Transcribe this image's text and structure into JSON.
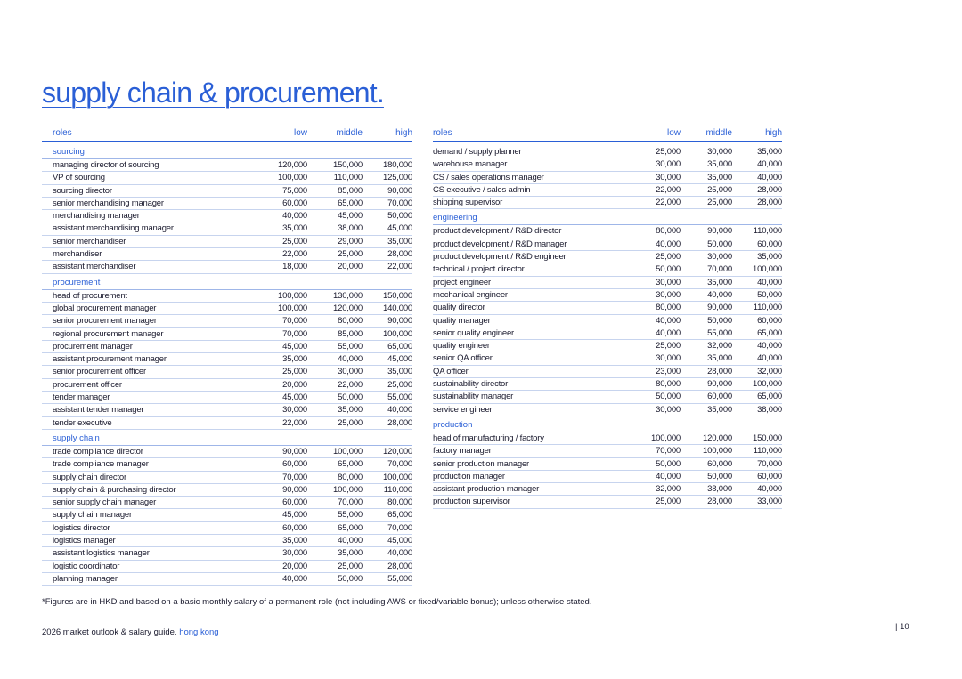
{
  "title": "supply chain & procurement.",
  "headers": {
    "roles": "roles",
    "low": "low",
    "middle": "middle",
    "high": "high"
  },
  "left_sections": [
    {
      "name": "sourcing",
      "rows": [
        [
          "managing director of sourcing",
          "120,000",
          "150,000",
          "180,000"
        ],
        [
          "VP of sourcing",
          "100,000",
          "110,000",
          "125,000"
        ],
        [
          "sourcing director",
          "75,000",
          "85,000",
          "90,000"
        ],
        [
          "senior merchandising manager",
          "60,000",
          "65,000",
          "70,000"
        ],
        [
          "merchandising manager",
          "40,000",
          "45,000",
          "50,000"
        ],
        [
          "assistant merchandising manager",
          "35,000",
          "38,000",
          "45,000"
        ],
        [
          "senior merchandiser",
          "25,000",
          "29,000",
          "35,000"
        ],
        [
          "merchandiser",
          "22,000",
          "25,000",
          "28,000"
        ],
        [
          "assistant merchandiser",
          "18,000",
          "20,000",
          "22,000"
        ]
      ]
    },
    {
      "name": "procurement",
      "rows": [
        [
          "head of procurement",
          "100,000",
          "130,000",
          "150,000"
        ],
        [
          "global procurement manager",
          "100,000",
          "120,000",
          "140,000"
        ],
        [
          "senior procurement manager",
          "70,000",
          "80,000",
          "90,000"
        ],
        [
          "regional procurement manager",
          "70,000",
          "85,000",
          "100,000"
        ],
        [
          "procurement manager",
          "45,000",
          "55,000",
          "65,000"
        ],
        [
          "assistant procurement manager",
          "35,000",
          "40,000",
          "45,000"
        ],
        [
          "senior procurement officer",
          "25,000",
          "30,000",
          "35,000"
        ],
        [
          "procurement officer",
          "20,000",
          "22,000",
          "25,000"
        ],
        [
          "tender manager",
          "45,000",
          "50,000",
          "55,000"
        ],
        [
          "assistant tender manager",
          "30,000",
          "35,000",
          "40,000"
        ],
        [
          "tender executive",
          "22,000",
          "25,000",
          "28,000"
        ]
      ]
    },
    {
      "name": "supply chain",
      "rows": [
        [
          "trade compliance director",
          "90,000",
          "100,000",
          "120,000"
        ],
        [
          "trade compliance manager",
          "60,000",
          "65,000",
          "70,000"
        ],
        [
          "supply chain director",
          "70,000",
          "80,000",
          "100,000"
        ],
        [
          "supply chain & purchasing director",
          "90,000",
          "100,000",
          "110,000"
        ],
        [
          "senior supply chain manager",
          "60,000",
          "70,000",
          "80,000"
        ],
        [
          "supply chain manager",
          "45,000",
          "55,000",
          "65,000"
        ],
        [
          "logistics director",
          "60,000",
          "65,000",
          "70,000"
        ],
        [
          "logistics manager",
          "35,000",
          "40,000",
          "45,000"
        ],
        [
          "assistant logistics manager",
          "30,000",
          "35,000",
          "40,000"
        ],
        [
          "logistic coordinator",
          "20,000",
          "25,000",
          "28,000"
        ],
        [
          "planning manager",
          "40,000",
          "50,000",
          "55,000"
        ]
      ]
    }
  ],
  "right_sections": [
    {
      "name": "",
      "rows": [
        [
          "demand / supply planner",
          "25,000",
          "30,000",
          "35,000"
        ],
        [
          "warehouse manager",
          "30,000",
          "35,000",
          "40,000"
        ],
        [
          "CS / sales operations manager",
          "30,000",
          "35,000",
          "40,000"
        ],
        [
          "CS executive / sales admin",
          "22,000",
          "25,000",
          "28,000"
        ],
        [
          "shipping supervisor",
          "22,000",
          "25,000",
          "28,000"
        ]
      ]
    },
    {
      "name": "engineering",
      "rows": [
        [
          "product development / R&D director",
          "80,000",
          "90,000",
          "110,000"
        ],
        [
          "product development / R&D manager",
          "40,000",
          "50,000",
          "60,000"
        ],
        [
          "product development / R&D engineer",
          "25,000",
          "30,000",
          "35,000"
        ],
        [
          "technical / project director",
          "50,000",
          "70,000",
          "100,000"
        ],
        [
          "project engineer",
          "30,000",
          "35,000",
          "40,000"
        ],
        [
          "mechanical engineer",
          "30,000",
          "40,000",
          "50,000"
        ],
        [
          "quality director",
          "80,000",
          "90,000",
          "110,000"
        ],
        [
          "quality manager",
          "40,000",
          "50,000",
          "60,000"
        ],
        [
          "senior quality engineer",
          "40,000",
          "55,000",
          "65,000"
        ],
        [
          "quality engineer",
          "25,000",
          "32,000",
          "40,000"
        ],
        [
          "senior QA officer",
          "30,000",
          "35,000",
          "40,000"
        ],
        [
          "QA officer",
          "23,000",
          "28,000",
          "32,000"
        ],
        [
          "sustainability director",
          "80,000",
          "90,000",
          "100,000"
        ],
        [
          "sustainability manager",
          "50,000",
          "60,000",
          "65,000"
        ],
        [
          "service engineer",
          "30,000",
          "35,000",
          "38,000"
        ]
      ]
    },
    {
      "name": "production",
      "rows": [
        [
          "head of manufacturing / factory",
          "100,000",
          "120,000",
          "150,000"
        ],
        [
          "factory manager",
          "70,000",
          "100,000",
          "110,000"
        ],
        [
          "senior production manager",
          "50,000",
          "60,000",
          "70,000"
        ],
        [
          "production manager",
          "40,000",
          "50,000",
          "60,000"
        ],
        [
          "assistant production manager",
          "32,000",
          "38,000",
          "40,000"
        ],
        [
          "production supervisor",
          "25,000",
          "28,000",
          "33,000"
        ]
      ]
    }
  ],
  "footnote": "*Figures are in HKD and based on a basic monthly salary of a permanent role (not including AWS or fixed/variable bonus); unless otherwise stated.",
  "guide": {
    "text": "2026 market outlook & salary guide.",
    "region": "hong kong"
  },
  "page_number": "| 10"
}
